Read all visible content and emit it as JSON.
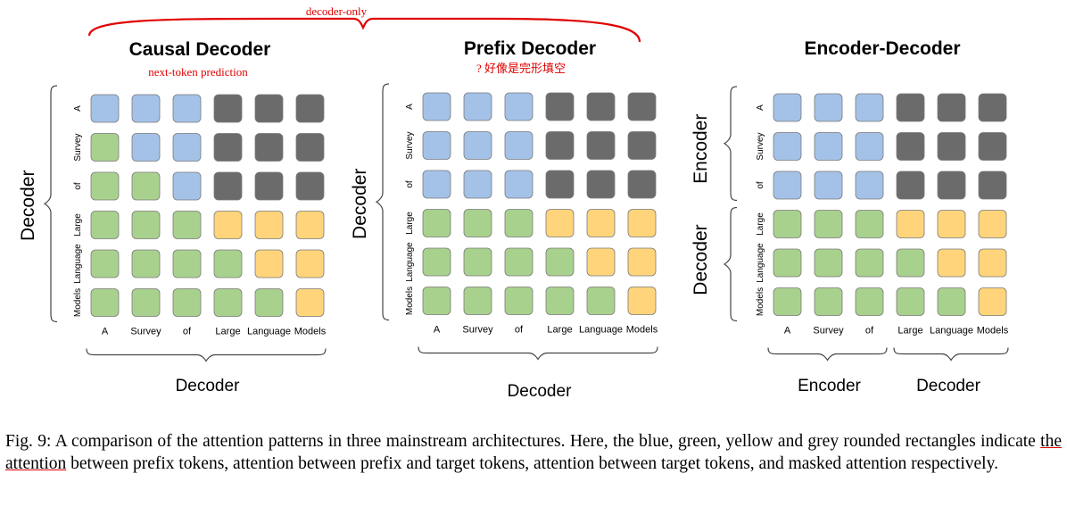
{
  "annotation": {
    "brace_label": "decoder-only",
    "causal_note": "next-token prediction",
    "prefix_note": "? 好像是完形填空"
  },
  "colors": {
    "blue": "#a4c2e8",
    "green": "#a9d18e",
    "yellow": "#ffd47a",
    "grey": "#6b6b6b",
    "red": "#e00000"
  },
  "tokens": [
    "A",
    "Survey",
    "of",
    "Large",
    "Language",
    "Models"
  ],
  "panels": [
    {
      "title": "Causal Decoder",
      "left_labels": [
        "Decoder"
      ],
      "bottom_labels": [
        "Decoder"
      ],
      "grid": [
        [
          "b",
          "g",
          "g",
          "g",
          "g",
          "g"
        ],
        [
          "b",
          "b",
          "g",
          "g",
          "g",
          "g"
        ],
        [
          "b",
          "b",
          "b",
          "g",
          "g",
          "g"
        ],
        [
          "gr",
          "gr",
          "gr",
          "y",
          "g",
          "g"
        ],
        [
          "gr",
          "gr",
          "gr",
          "y",
          "y",
          "g"
        ],
        [
          "gr",
          "gr",
          "gr",
          "y",
          "y",
          "y"
        ]
      ]
    },
    {
      "title": "Prefix Decoder",
      "left_labels": [
        "Decoder"
      ],
      "bottom_labels": [
        "Decoder"
      ],
      "grid": [
        [
          "b",
          "b",
          "b",
          "g",
          "g",
          "g"
        ],
        [
          "b",
          "b",
          "b",
          "g",
          "g",
          "g"
        ],
        [
          "b",
          "b",
          "b",
          "g",
          "g",
          "g"
        ],
        [
          "gr",
          "gr",
          "gr",
          "y",
          "g",
          "g"
        ],
        [
          "gr",
          "gr",
          "gr",
          "y",
          "y",
          "g"
        ],
        [
          "gr",
          "gr",
          "gr",
          "y",
          "y",
          "y"
        ]
      ]
    },
    {
      "title": "Encoder-Decoder",
      "left_labels": [
        "Encoder",
        "Decoder"
      ],
      "bottom_labels": [
        "Encoder",
        "Decoder"
      ],
      "grid": [
        [
          "b",
          "b",
          "b",
          "g",
          "g",
          "g"
        ],
        [
          "b",
          "b",
          "b",
          "g",
          "g",
          "g"
        ],
        [
          "b",
          "b",
          "b",
          "g",
          "g",
          "g"
        ],
        [
          "gr",
          "gr",
          "gr",
          "y",
          "g",
          "g"
        ],
        [
          "gr",
          "gr",
          "gr",
          "y",
          "y",
          "g"
        ],
        [
          "gr",
          "gr",
          "gr",
          "y",
          "y",
          "y"
        ]
      ]
    }
  ],
  "caption": {
    "before": "Fig. 9: A comparison of the attention patterns in three mainstream architectures. Here, the blue, green, yellow and grey rounded rectangles indicate ",
    "underlined": "the attention",
    "after": " between prefix tokens, attention between prefix and target tokens, attention between target tokens, and masked attention respectively."
  }
}
